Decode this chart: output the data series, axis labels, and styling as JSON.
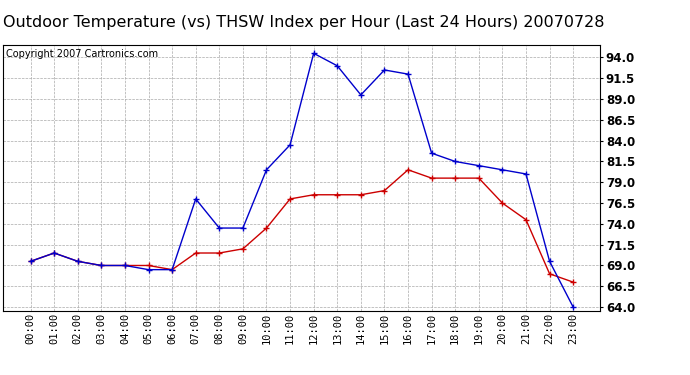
{
  "title": "Outdoor Temperature (vs) THSW Index per Hour (Last 24 Hours) 20070728",
  "copyright_text": "Copyright 2007 Cartronics.com",
  "hours": [
    "00:00",
    "01:00",
    "02:00",
    "03:00",
    "04:00",
    "05:00",
    "06:00",
    "07:00",
    "08:00",
    "09:00",
    "10:00",
    "11:00",
    "12:00",
    "13:00",
    "14:00",
    "15:00",
    "16:00",
    "17:00",
    "18:00",
    "19:00",
    "20:00",
    "21:00",
    "22:00",
    "23:00"
  ],
  "temp": [
    69.5,
    70.5,
    69.5,
    69.0,
    69.0,
    69.0,
    68.5,
    70.5,
    70.5,
    71.0,
    73.5,
    77.0,
    77.5,
    77.5,
    77.5,
    78.0,
    80.5,
    79.5,
    79.5,
    79.5,
    76.5,
    74.5,
    68.0,
    67.0
  ],
  "thsw": [
    69.5,
    70.5,
    69.5,
    69.0,
    69.0,
    68.5,
    68.5,
    77.0,
    73.5,
    73.5,
    80.5,
    83.5,
    94.5,
    93.0,
    89.5,
    92.5,
    92.0,
    82.5,
    81.5,
    81.0,
    80.5,
    80.0,
    69.5,
    64.0
  ],
  "temp_color": "#cc0000",
  "thsw_color": "#0000cc",
  "background_color": "#ffffff",
  "plot_bg_color": "#ffffff",
  "grid_color": "#aaaaaa",
  "ylim": [
    63.5,
    95.5
  ],
  "yticks": [
    64.0,
    66.5,
    69.0,
    71.5,
    74.0,
    76.5,
    79.0,
    81.5,
    84.0,
    86.5,
    89.0,
    91.5,
    94.0
  ],
  "title_fontsize": 11.5,
  "copyright_fontsize": 7,
  "tick_fontsize": 7.5,
  "ytick_fontsize": 8.5
}
